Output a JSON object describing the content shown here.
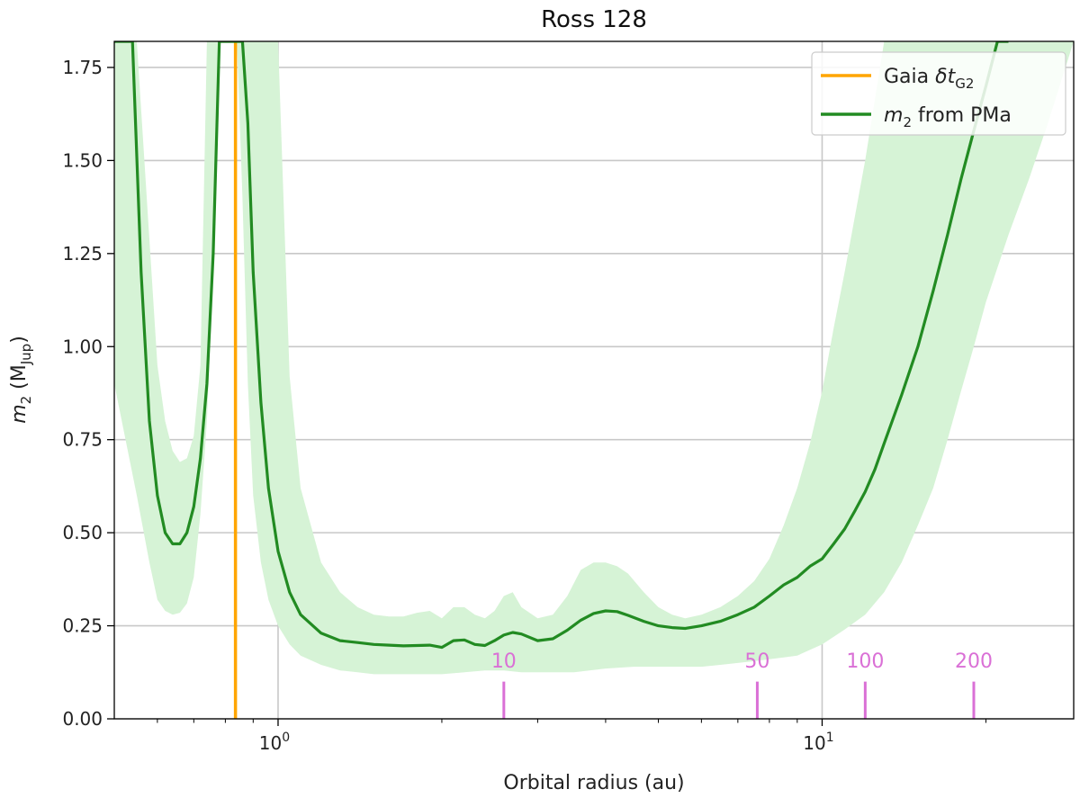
{
  "chart_data": {
    "type": "line",
    "title": "Ross 128",
    "xlabel": "Orbital radius (au)",
    "ylabel_main": "m",
    "ylabel_sub": "2",
    "ylabel_unit_open": " (M",
    "ylabel_unit_sub": "Jup",
    "ylabel_unit_close": ")",
    "x_scale": "log",
    "xlim": [
      0.5,
      29
    ],
    "ylim": [
      0,
      1.82
    ],
    "x_ticks": [
      {
        "value": 1,
        "base": "10",
        "exp": "0"
      },
      {
        "value": 10,
        "base": "10",
        "exp": "1"
      }
    ],
    "y_ticks": [
      {
        "value": 0.0,
        "label": "0.00"
      },
      {
        "value": 0.25,
        "label": "0.25"
      },
      {
        "value": 0.5,
        "label": "0.50"
      },
      {
        "value": 0.75,
        "label": "0.75"
      },
      {
        "value": 1.0,
        "label": "1.00"
      },
      {
        "value": 1.25,
        "label": "1.25"
      },
      {
        "value": 1.5,
        "label": "1.50"
      },
      {
        "value": 1.75,
        "label": "1.75"
      }
    ],
    "grid": true,
    "legend_position": "top-right",
    "legend": [
      {
        "key": "gaia",
        "pre": "Gaia ",
        "italic": "δt",
        "sub": "G2",
        "post": ""
      },
      {
        "key": "m2",
        "pre": "",
        "italic": "m",
        "sub": "2",
        "post": " from PMa"
      }
    ],
    "colors": {
      "m2_line": "#228B22",
      "band": "#D6F3D6",
      "gaia_line": "#FFA500",
      "period_marks": "#DA70D6",
      "grid": "#C8C8C8"
    },
    "gaia_line_x": 0.835,
    "series": [
      {
        "key": "m2",
        "x": [
          0.5,
          0.52,
          0.54,
          0.56,
          0.58,
          0.6,
          0.62,
          0.64,
          0.66,
          0.68,
          0.7,
          0.72,
          0.74,
          0.76,
          0.78,
          0.8,
          0.82,
          0.84,
          0.86,
          0.88,
          0.9,
          0.93,
          0.96,
          1.0,
          1.05,
          1.1,
          1.2,
          1.3,
          1.4,
          1.5,
          1.6,
          1.7,
          1.8,
          1.9,
          2.0,
          2.1,
          2.2,
          2.3,
          2.4,
          2.5,
          2.6,
          2.7,
          2.8,
          3.0,
          3.2,
          3.4,
          3.6,
          3.8,
          4.0,
          4.2,
          4.4,
          4.7,
          5.0,
          5.3,
          5.6,
          6.0,
          6.5,
          7.0,
          7.5,
          8.0,
          8.5,
          9.0,
          9.5,
          10.0,
          10.5,
          11.0,
          11.5,
          12.0,
          12.5,
          13.0,
          14.0,
          15.0,
          16.0,
          17.0,
          18.0,
          19.0,
          20.0,
          21.0,
          22.0
        ],
        "values": [
          1.82,
          1.82,
          1.82,
          1.2,
          0.8,
          0.6,
          0.5,
          0.47,
          0.47,
          0.5,
          0.57,
          0.7,
          0.9,
          1.25,
          1.82,
          1.82,
          1.82,
          1.82,
          1.82,
          1.6,
          1.2,
          0.85,
          0.62,
          0.45,
          0.34,
          0.28,
          0.23,
          0.21,
          0.205,
          0.2,
          0.198,
          0.196,
          0.197,
          0.198,
          0.192,
          0.21,
          0.212,
          0.2,
          0.197,
          0.21,
          0.225,
          0.232,
          0.228,
          0.21,
          0.215,
          0.238,
          0.265,
          0.283,
          0.29,
          0.288,
          0.278,
          0.262,
          0.25,
          0.245,
          0.243,
          0.25,
          0.262,
          0.28,
          0.3,
          0.33,
          0.36,
          0.38,
          0.41,
          0.43,
          0.47,
          0.51,
          0.56,
          0.61,
          0.67,
          0.74,
          0.87,
          1.0,
          1.15,
          1.3,
          1.45,
          1.58,
          1.7,
          1.82,
          1.82
        ]
      },
      {
        "key": "band_upper",
        "x": [
          0.5,
          0.55,
          0.6,
          0.62,
          0.64,
          0.66,
          0.68,
          0.7,
          0.72,
          0.74,
          1.0,
          1.05,
          1.1,
          1.2,
          1.3,
          1.4,
          1.5,
          1.6,
          1.7,
          1.8,
          1.9,
          2.0,
          2.1,
          2.2,
          2.3,
          2.4,
          2.5,
          2.6,
          2.7,
          2.8,
          3.0,
          3.2,
          3.4,
          3.6,
          3.8,
          4.0,
          4.2,
          4.4,
          4.7,
          5.0,
          5.3,
          5.6,
          6.0,
          6.5,
          7.0,
          7.5,
          8.0,
          8.5,
          9.0,
          9.5,
          10.0,
          10.5,
          11.0,
          12.0,
          13.0,
          14.0,
          15.0,
          16.0,
          17.0,
          18.0,
          19.0,
          20.0
        ],
        "values": [
          1.82,
          1.82,
          0.95,
          0.8,
          0.72,
          0.69,
          0.7,
          0.76,
          0.95,
          1.82,
          1.82,
          0.92,
          0.62,
          0.42,
          0.34,
          0.3,
          0.28,
          0.275,
          0.275,
          0.285,
          0.29,
          0.27,
          0.3,
          0.3,
          0.28,
          0.27,
          0.29,
          0.33,
          0.34,
          0.3,
          0.27,
          0.28,
          0.33,
          0.4,
          0.42,
          0.42,
          0.41,
          0.39,
          0.34,
          0.3,
          0.28,
          0.27,
          0.28,
          0.3,
          0.33,
          0.37,
          0.43,
          0.52,
          0.62,
          0.74,
          0.88,
          1.05,
          1.2,
          1.5,
          1.82,
          1.82,
          1.82,
          1.82,
          1.82,
          1.82,
          1.82,
          1.82
        ]
      },
      {
        "key": "band_lower",
        "x": [
          0.5,
          0.55,
          0.58,
          0.6,
          0.62,
          0.64,
          0.66,
          0.68,
          0.7,
          0.72,
          0.74,
          0.76,
          0.78,
          0.8,
          0.84,
          0.86,
          0.88,
          0.9,
          0.93,
          0.96,
          1.0,
          1.05,
          1.1,
          1.2,
          1.3,
          1.4,
          1.5,
          1.6,
          1.7,
          1.8,
          1.9,
          2.0,
          2.2,
          2.4,
          2.6,
          2.8,
          3.0,
          3.5,
          4.0,
          4.5,
          5.0,
          5.5,
          6.0,
          6.5,
          7.0,
          7.5,
          8.0,
          8.5,
          9.0,
          10.0,
          11.0,
          12.0,
          13.0,
          14.0,
          15.0,
          16.0,
          17.0,
          18.0,
          19.0,
          20.0,
          22.0,
          24.0,
          26.0,
          29.0
        ],
        "values": [
          0.9,
          0.6,
          0.42,
          0.32,
          0.29,
          0.28,
          0.285,
          0.31,
          0.38,
          0.55,
          0.8,
          1.2,
          1.82,
          1.82,
          1.82,
          1.4,
          0.9,
          0.6,
          0.42,
          0.32,
          0.25,
          0.2,
          0.17,
          0.145,
          0.13,
          0.125,
          0.12,
          0.12,
          0.12,
          0.12,
          0.12,
          0.12,
          0.125,
          0.13,
          0.13,
          0.125,
          0.125,
          0.125,
          0.135,
          0.14,
          0.14,
          0.14,
          0.14,
          0.145,
          0.15,
          0.155,
          0.16,
          0.165,
          0.17,
          0.2,
          0.24,
          0.28,
          0.34,
          0.42,
          0.52,
          0.62,
          0.75,
          0.88,
          1.0,
          1.12,
          1.3,
          1.45,
          1.6,
          1.82
        ]
      }
    ],
    "period_marks": [
      {
        "x": 2.6,
        "label": "10"
      },
      {
        "x": 7.6,
        "label": "50"
      },
      {
        "x": 12.0,
        "label": "100"
      },
      {
        "x": 19.0,
        "label": "200"
      }
    ]
  }
}
